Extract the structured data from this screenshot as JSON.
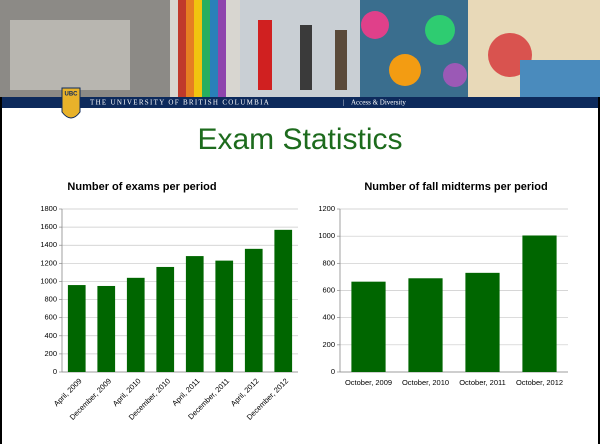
{
  "header": {
    "logo": "UBC",
    "university": "THE UNIVERSITY OF BRITISH COLUMBIA",
    "separator": "|",
    "unit": "Access & Diversity"
  },
  "title": "Exam Statistics",
  "chart_data": [
    {
      "type": "bar",
      "title": "Number of exams per period",
      "categories": [
        "April, 2009",
        "December, 2009",
        "April, 2010",
        "December, 2010",
        "April, 2011",
        "December, 2011",
        "April, 2012",
        "December, 2012"
      ],
      "values": [
        960,
        950,
        1040,
        1160,
        1280,
        1230,
        1360,
        1570
      ],
      "color": "#006600",
      "ylim": [
        0,
        1800
      ],
      "yticks": [
        0,
        200,
        400,
        600,
        800,
        1000,
        1200,
        1400,
        1600,
        1800
      ],
      "grid": true
    },
    {
      "type": "bar",
      "title": "Number of fall midterms per period",
      "categories": [
        "October, 2009",
        "October, 2010",
        "October, 2011",
        "October, 2012"
      ],
      "values": [
        665,
        690,
        730,
        1005
      ],
      "color": "#006600",
      "ylim": [
        0,
        1200
      ],
      "yticks": [
        0,
        200,
        400,
        600,
        800,
        1000,
        1200
      ],
      "grid": true
    }
  ]
}
